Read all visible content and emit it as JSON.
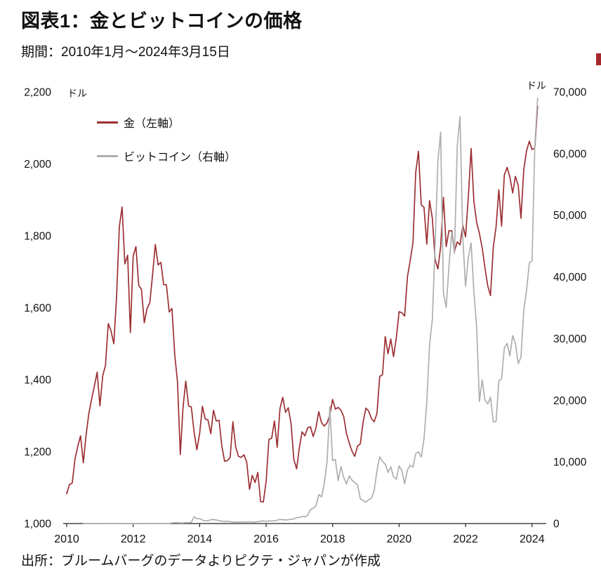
{
  "header": {
    "title": "図表1：金とビットコインの価格",
    "subtitle": "期間：2010年1月～2024年3月15日"
  },
  "footer": {
    "source": "出所：ブルームバーグのデータよりピクテ・ジャパンが作成"
  },
  "chart_data": {
    "type": "line",
    "title": "図表1：金とビットコインの価格",
    "period": "2010年1月～2024年3月15日",
    "grid": false,
    "legend_position": "top-left",
    "x_axis": {
      "min": 2010,
      "max": 2024.3,
      "ticks": [
        "2010",
        "2012",
        "2014",
        "2016",
        "2018",
        "2020",
        "2022",
        "2024"
      ]
    },
    "left_axis": {
      "unit": "ドル",
      "min": 1000,
      "max": 2200,
      "ticks": [
        "2,200",
        "2,000",
        "1,800",
        "1,600",
        "1,400",
        "1,200",
        "1,000"
      ]
    },
    "right_axis": {
      "unit": "ドル",
      "min": 0,
      "max": 70000,
      "ticks": [
        "70,000",
        "60,000",
        "50,000",
        "40,000",
        "30,000",
        "20,000",
        "10,000",
        "0"
      ]
    },
    "series": [
      {
        "name": "金（左軸）",
        "axis": "left",
        "color": "#9c2f33",
        "start_year": 2010.0,
        "interval": "monthly",
        "values": [
          1083,
          1108,
          1113,
          1179,
          1215,
          1244,
          1169,
          1246,
          1307,
          1346,
          1383,
          1421,
          1327,
          1411,
          1439,
          1556,
          1536,
          1500,
          1628,
          1826,
          1880,
          1722,
          1746,
          1531,
          1744,
          1770,
          1662,
          1651,
          1558,
          1598,
          1614,
          1692,
          1776,
          1719,
          1726,
          1664,
          1664,
          1588,
          1598,
          1469,
          1394,
          1192,
          1323,
          1396,
          1327,
          1324,
          1253,
          1205,
          1251,
          1326,
          1291,
          1288,
          1250,
          1315,
          1285,
          1287,
          1216,
          1173,
          1175,
          1184,
          1283,
          1213,
          1187,
          1184,
          1191,
          1171,
          1095,
          1134,
          1114,
          1142,
          1061,
          1060,
          1118,
          1234,
          1237,
          1285,
          1212,
          1320,
          1351,
          1309,
          1322,
          1277,
          1178,
          1152,
          1212,
          1255,
          1244,
          1266,
          1269,
          1242,
          1267,
          1311,
          1280,
          1271,
          1280,
          1302,
          1345,
          1318,
          1323,
          1315,
          1298,
          1250,
          1224,
          1201,
          1187,
          1215,
          1222,
          1281,
          1321,
          1313,
          1292,
          1283,
          1306,
          1409,
          1414,
          1520,
          1472,
          1513,
          1464,
          1517,
          1589,
          1586,
          1577,
          1686,
          1730,
          1781,
          1976,
          2035,
          1886,
          1879,
          1777,
          1898,
          1848,
          1734,
          1708,
          1769,
          1907,
          1770,
          1814,
          1814,
          1757,
          1783,
          1775,
          1829,
          1797,
          1909,
          2043,
          1897,
          1837,
          1807,
          1766,
          1711,
          1661,
          1634,
          1769,
          1824,
          1928,
          1827,
          1969,
          1990,
          1963,
          1919,
          1965,
          1940,
          1849,
          1984,
          2036,
          2063,
          2040,
          2044,
          2160
        ]
      },
      {
        "name": "ビットコイン（右軸）",
        "axis": "right",
        "color": "#aeaeae",
        "start_year": 2010.5,
        "interval": "monthly",
        "values": [
          0.1,
          0.1,
          0.1,
          0.2,
          0.2,
          0.3,
          0.4,
          0.9,
          0.8,
          3,
          8,
          17,
          13,
          10,
          5,
          3,
          3,
          4,
          6,
          5,
          5,
          5,
          5,
          6,
          9,
          10,
          12,
          11,
          12,
          13,
          20,
          33,
          93,
          139,
          128,
          97,
          98,
          135,
          133,
          204,
          1127,
          757,
          815,
          550,
          458,
          446,
          627,
          641,
          583,
          479,
          387,
          338,
          376,
          320,
          217,
          254,
          244,
          236,
          230,
          263,
          284,
          230,
          236,
          314,
          377,
          430,
          368,
          438,
          416,
          448,
          531,
          673,
          624,
          575,
          610,
          700,
          745,
          964,
          970,
          1180,
          1080,
          1347,
          2286,
          2480,
          2875,
          4703,
          4338,
          6468,
          10233,
          19000,
          10221,
          10397,
          6938,
          9245,
          7494,
          6404,
          7730,
          7033,
          6626,
          6317,
          4017,
          3742,
          3457,
          3854,
          4105,
          5320,
          8574,
          10817,
          10085,
          9630,
          8293,
          9199,
          7569,
          7193,
          9350,
          8599,
          6438,
          8658,
          9461,
          9137,
          11351,
          11655,
          10784,
          13797,
          19698,
          28994,
          33141,
          45240,
          58789,
          63500,
          37333,
          35041,
          41626,
          47167,
          43790,
          61320,
          66000,
          46216,
          38500,
          43200,
          45500,
          37700,
          31800,
          19800,
          23300,
          20000,
          19400,
          20500,
          16500,
          16550,
          23130,
          23500,
          28480,
          29230,
          27220,
          30480,
          29230,
          25940,
          26960,
          34670,
          37710,
          42270,
          42580,
          61200,
          69000
        ]
      }
    ]
  }
}
